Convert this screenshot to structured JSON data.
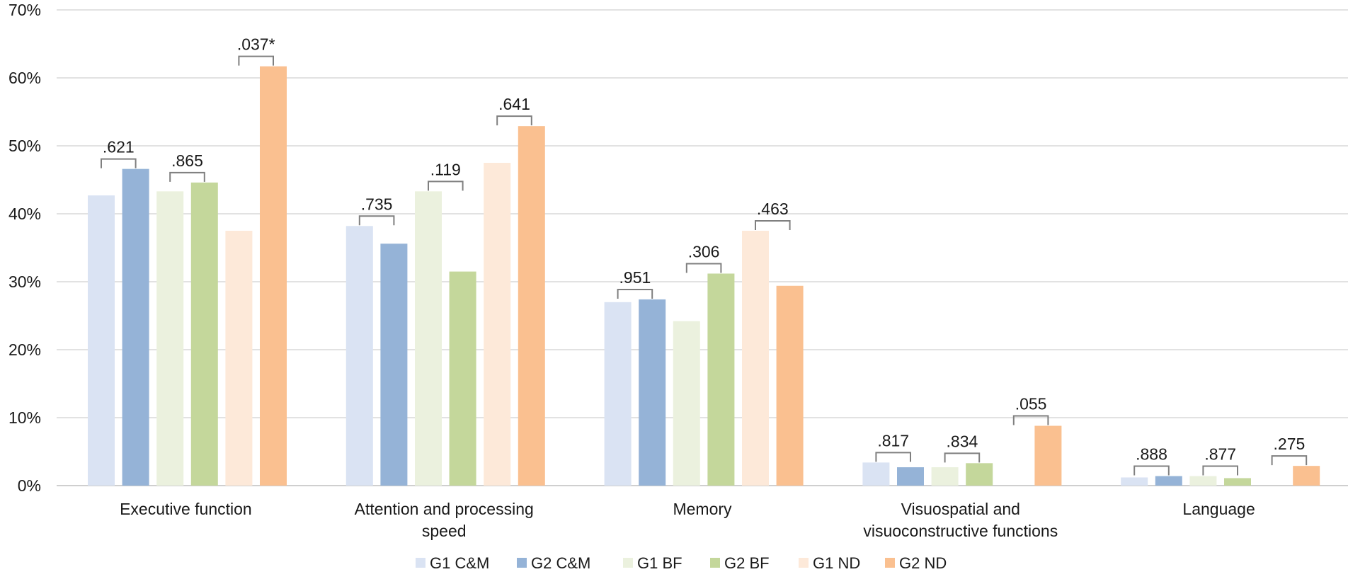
{
  "chart_data": {
    "type": "bar",
    "title": "",
    "xlabel": "",
    "ylabel": "",
    "ylim": [
      0,
      70
    ],
    "y_ticks": [
      "0%",
      "10%",
      "20%",
      "30%",
      "40%",
      "50%",
      "60%",
      "70%"
    ],
    "grid": true,
    "legend_position": "bottom",
    "categories": [
      [
        "Executive function"
      ],
      [
        "Attention and processing",
        "speed"
      ],
      [
        "Memory"
      ],
      [
        "Visuospatial and",
        "visuoconstructive functions"
      ],
      [
        "Language"
      ]
    ],
    "series": [
      {
        "name": "G1 C&M",
        "color": "#dae3f3",
        "values": [
          42.7,
          38.2,
          27.0,
          3.4,
          1.2
        ]
      },
      {
        "name": "G2 C&M",
        "color": "#95b3d7",
        "values": [
          46.6,
          35.6,
          27.4,
          2.7,
          1.4
        ]
      },
      {
        "name": "G1 BF",
        "color": "#ebf1de",
        "values": [
          43.3,
          43.3,
          24.2,
          2.7,
          1.4
        ]
      },
      {
        "name": "G2 BF",
        "color": "#c4d79b",
        "values": [
          44.6,
          31.5,
          31.2,
          3.3,
          1.1
        ]
      },
      {
        "name": "G1 ND",
        "color": "#fde9d9",
        "values": [
          37.5,
          47.5,
          37.5,
          0,
          0
        ]
      },
      {
        "name": "G2 ND",
        "color": "#fac090",
        "values": [
          61.7,
          52.9,
          29.4,
          8.8,
          2.9
        ]
      }
    ],
    "p_values": [
      [
        ".621",
        ".865",
        ".037*"
      ],
      [
        ".735",
        ".119",
        ".641"
      ],
      [
        ".951",
        ".306",
        ".463"
      ],
      [
        ".817",
        ".834",
        ".055"
      ],
      [
        ".888",
        ".877",
        ".275"
      ]
    ]
  }
}
